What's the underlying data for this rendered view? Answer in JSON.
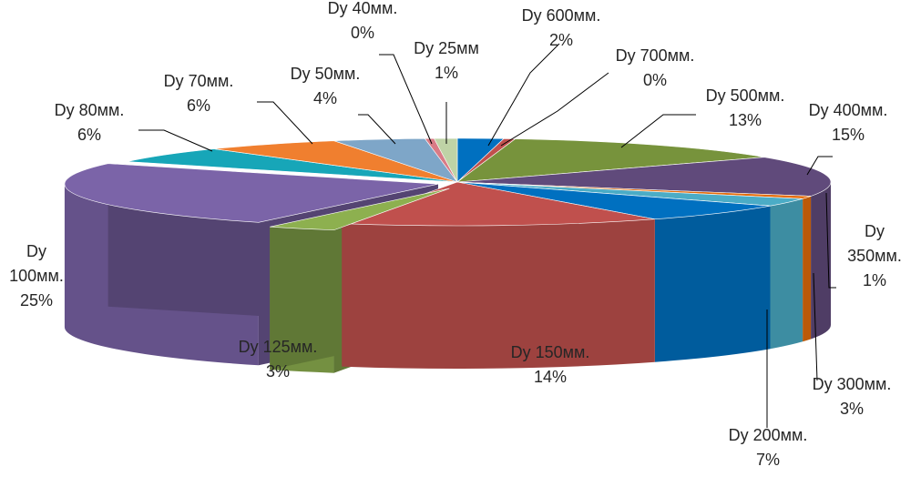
{
  "chart_data": {
    "type": "pie",
    "title": "",
    "legend": "none",
    "slices": [
      {
        "label": "Dy 600мм.",
        "pct": "2%",
        "value": 2,
        "color": "#0070C0"
      },
      {
        "label": "Dy 700мм.",
        "pct": "0%",
        "value": 0.5,
        "color": "#C0504D"
      },
      {
        "label": "Dy 500мм.",
        "pct": "13%",
        "value": 13,
        "color": "#77933C"
      },
      {
        "label": "Dy 400мм.",
        "pct": "15%",
        "value": 15,
        "color": "#604A7B"
      },
      {
        "label": "Dy 350мм.",
        "pct": "1%",
        "value": 1,
        "color": "#E46C0A"
      },
      {
        "label": "Dy 300мм.",
        "pct": "3%",
        "value": 3,
        "color": "#4BACC6"
      },
      {
        "label": "Dy 200мм.",
        "pct": "7%",
        "value": 7,
        "color": "#0070C0"
      },
      {
        "label": "Dy 150мм.",
        "pct": "14%",
        "value": 14,
        "color": "#C0504D"
      },
      {
        "label": "Dy 125мм.",
        "pct": "3%",
        "value": 3,
        "color": "#8DB04F"
      },
      {
        "label": "Dy 100мм.",
        "pct": "25%",
        "value": 25,
        "color": "#7B64A8"
      },
      {
        "label": "Dy 80мм.",
        "pct": "6%",
        "value": 6,
        "color": "#17A6B8"
      },
      {
        "label": "Dy 70мм.",
        "pct": "6%",
        "value": 6,
        "color": "#F07F2F"
      },
      {
        "label": "Dy 50мм.",
        "pct": "4%",
        "value": 4,
        "color": "#7EA6C8"
      },
      {
        "label": "Dy 40мм.",
        "pct": "0%",
        "value": 0.4,
        "color": "#D97B86"
      },
      {
        "label": "Dy 25мм",
        "pct": "1%",
        "value": 1,
        "color": "#BFD3A6"
      }
    ]
  }
}
